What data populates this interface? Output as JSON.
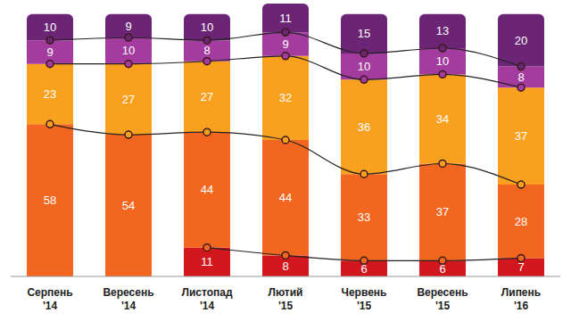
{
  "chart_data": {
    "type": "bar",
    "stacked": true,
    "data_labels": true,
    "tick_labels": "x",
    "categories": [
      "Серпень '14",
      "Вересень '14",
      "Листопад '14",
      "Лютий '15",
      "Червень '15",
      "Вересень '15",
      "Липень '16"
    ],
    "ylim": [
      0,
      104
    ],
    "series": [
      {
        "color": "#d3171f",
        "values": [
          null,
          null,
          11,
          8,
          6,
          6,
          7
        ]
      },
      {
        "color": "#f2661f",
        "values": [
          58,
          54,
          44,
          44,
          33,
          37,
          28
        ]
      },
      {
        "color": "#f9a11e",
        "values": [
          23,
          27,
          27,
          32,
          36,
          34,
          37
        ]
      },
      {
        "color": "#a43b9f",
        "values": [
          9,
          10,
          8,
          9,
          10,
          10,
          8
        ]
      },
      {
        "color": "#6b2574",
        "values": [
          10,
          9,
          10,
          11,
          15,
          13,
          20
        ]
      }
    ]
  }
}
